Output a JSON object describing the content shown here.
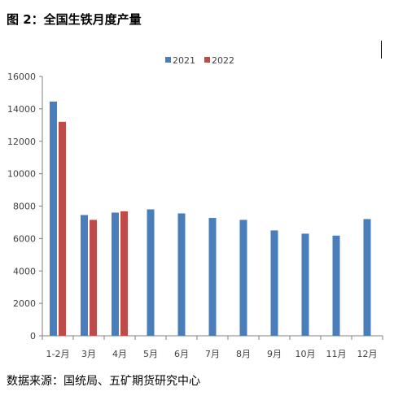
{
  "title": "图 2：全国生铁月度产量",
  "source": "数据来源：国统局、五矿期货研究中心",
  "chart_data": {
    "type": "bar",
    "categories": [
      "1-2月",
      "3月",
      "4月",
      "5月",
      "6月",
      "7月",
      "8月",
      "9月",
      "10月",
      "11月",
      "12月"
    ],
    "series": [
      {
        "name": "2021",
        "color": "#4a7ebb",
        "values": [
          14450,
          7450,
          7600,
          7800,
          7550,
          7270,
          7150,
          6500,
          6300,
          6180,
          7200
        ]
      },
      {
        "name": "2022",
        "color": "#be4b48",
        "values": [
          13200,
          7150,
          7680,
          null,
          null,
          null,
          null,
          null,
          null,
          null,
          null
        ]
      }
    ],
    "y_ticks": [
      "0",
      "2000",
      "4000",
      "6000",
      "8000",
      "10000",
      "12000",
      "14000",
      "16000"
    ],
    "ylim": [
      0,
      16000
    ],
    "grid": false,
    "legend_position": "top"
  }
}
